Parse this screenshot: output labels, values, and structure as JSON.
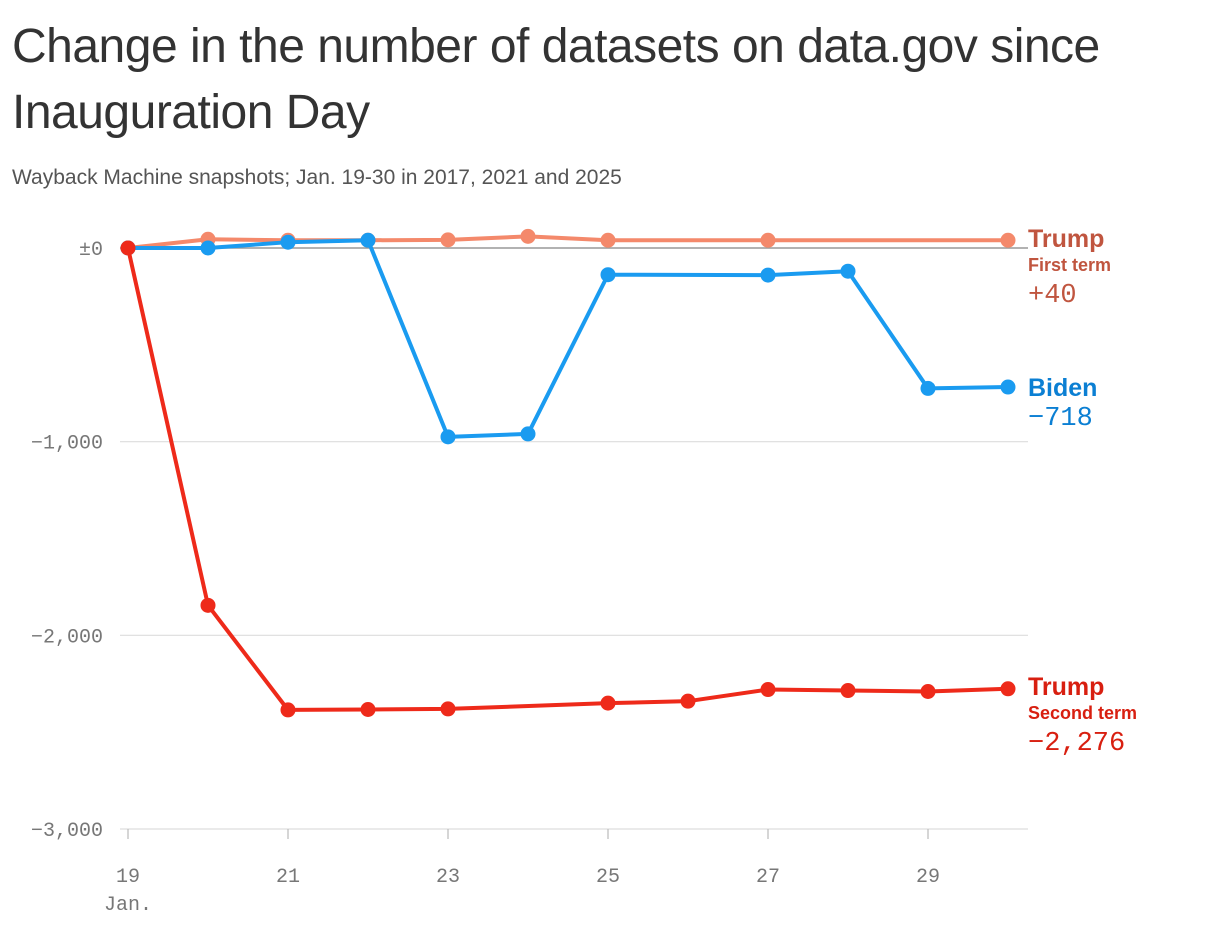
{
  "header": {
    "title": "Change in the number of datasets on data.gov since Inauguration Day",
    "subtitle": "Wayback Machine snapshots; Jan. 19-30 in 2017, 2021 and 2025"
  },
  "chart_data": {
    "type": "line",
    "title": "Change in the number of datasets on data.gov since Inauguration Day",
    "subtitle": "Wayback Machine snapshots; Jan. 19-30 in 2017, 2021 and 2025",
    "x": [
      19,
      20,
      21,
      22,
      23,
      24,
      25,
      26,
      27,
      28,
      29,
      30
    ],
    "xlim": [
      19,
      30
    ],
    "ylim": [
      -3000,
      0
    ],
    "x_ticks": [
      19,
      21,
      23,
      25,
      27,
      29
    ],
    "x_tick_labels": [
      "19",
      "21",
      "23",
      "25",
      "27",
      "29"
    ],
    "x_axis_note": "Jan.",
    "y_ticks": [
      0,
      -1000,
      -2000,
      -3000
    ],
    "y_tick_labels": [
      "±0",
      "−1,000",
      "−2,000",
      "−3,000"
    ],
    "grid": true,
    "legend": "direct labels at right end of lines",
    "series": [
      {
        "name": "Trump",
        "sublabel": "First term",
        "end_label": "+40",
        "color": "#f4896b",
        "label_color": "#c0553f",
        "x": [
          19,
          20,
          21,
          22,
          23,
          24,
          25,
          27,
          30
        ],
        "values": [
          0,
          45,
          40,
          40,
          42,
          60,
          40,
          40,
          40
        ]
      },
      {
        "name": "Biden",
        "end_label": "−718",
        "color": "#1a9bf0",
        "label_color": "#0b7fd3",
        "x": [
          19,
          20,
          21,
          22,
          23,
          24,
          25,
          27,
          28,
          29,
          30
        ],
        "values": [
          0,
          0,
          30,
          40,
          -975,
          -960,
          -138,
          -140,
          -120,
          -725,
          -718
        ]
      },
      {
        "name": "Trump",
        "sublabel": "Second term",
        "end_label": "−2,276",
        "color": "#ee2a1a",
        "label_color": "#d81f10",
        "x": [
          19,
          20,
          21,
          22,
          23,
          25,
          26,
          27,
          28,
          29,
          30
        ],
        "values": [
          0,
          -1845,
          -2385,
          -2383,
          -2380,
          -2350,
          -2340,
          -2280,
          -2285,
          -2290,
          -2276
        ]
      }
    ]
  }
}
